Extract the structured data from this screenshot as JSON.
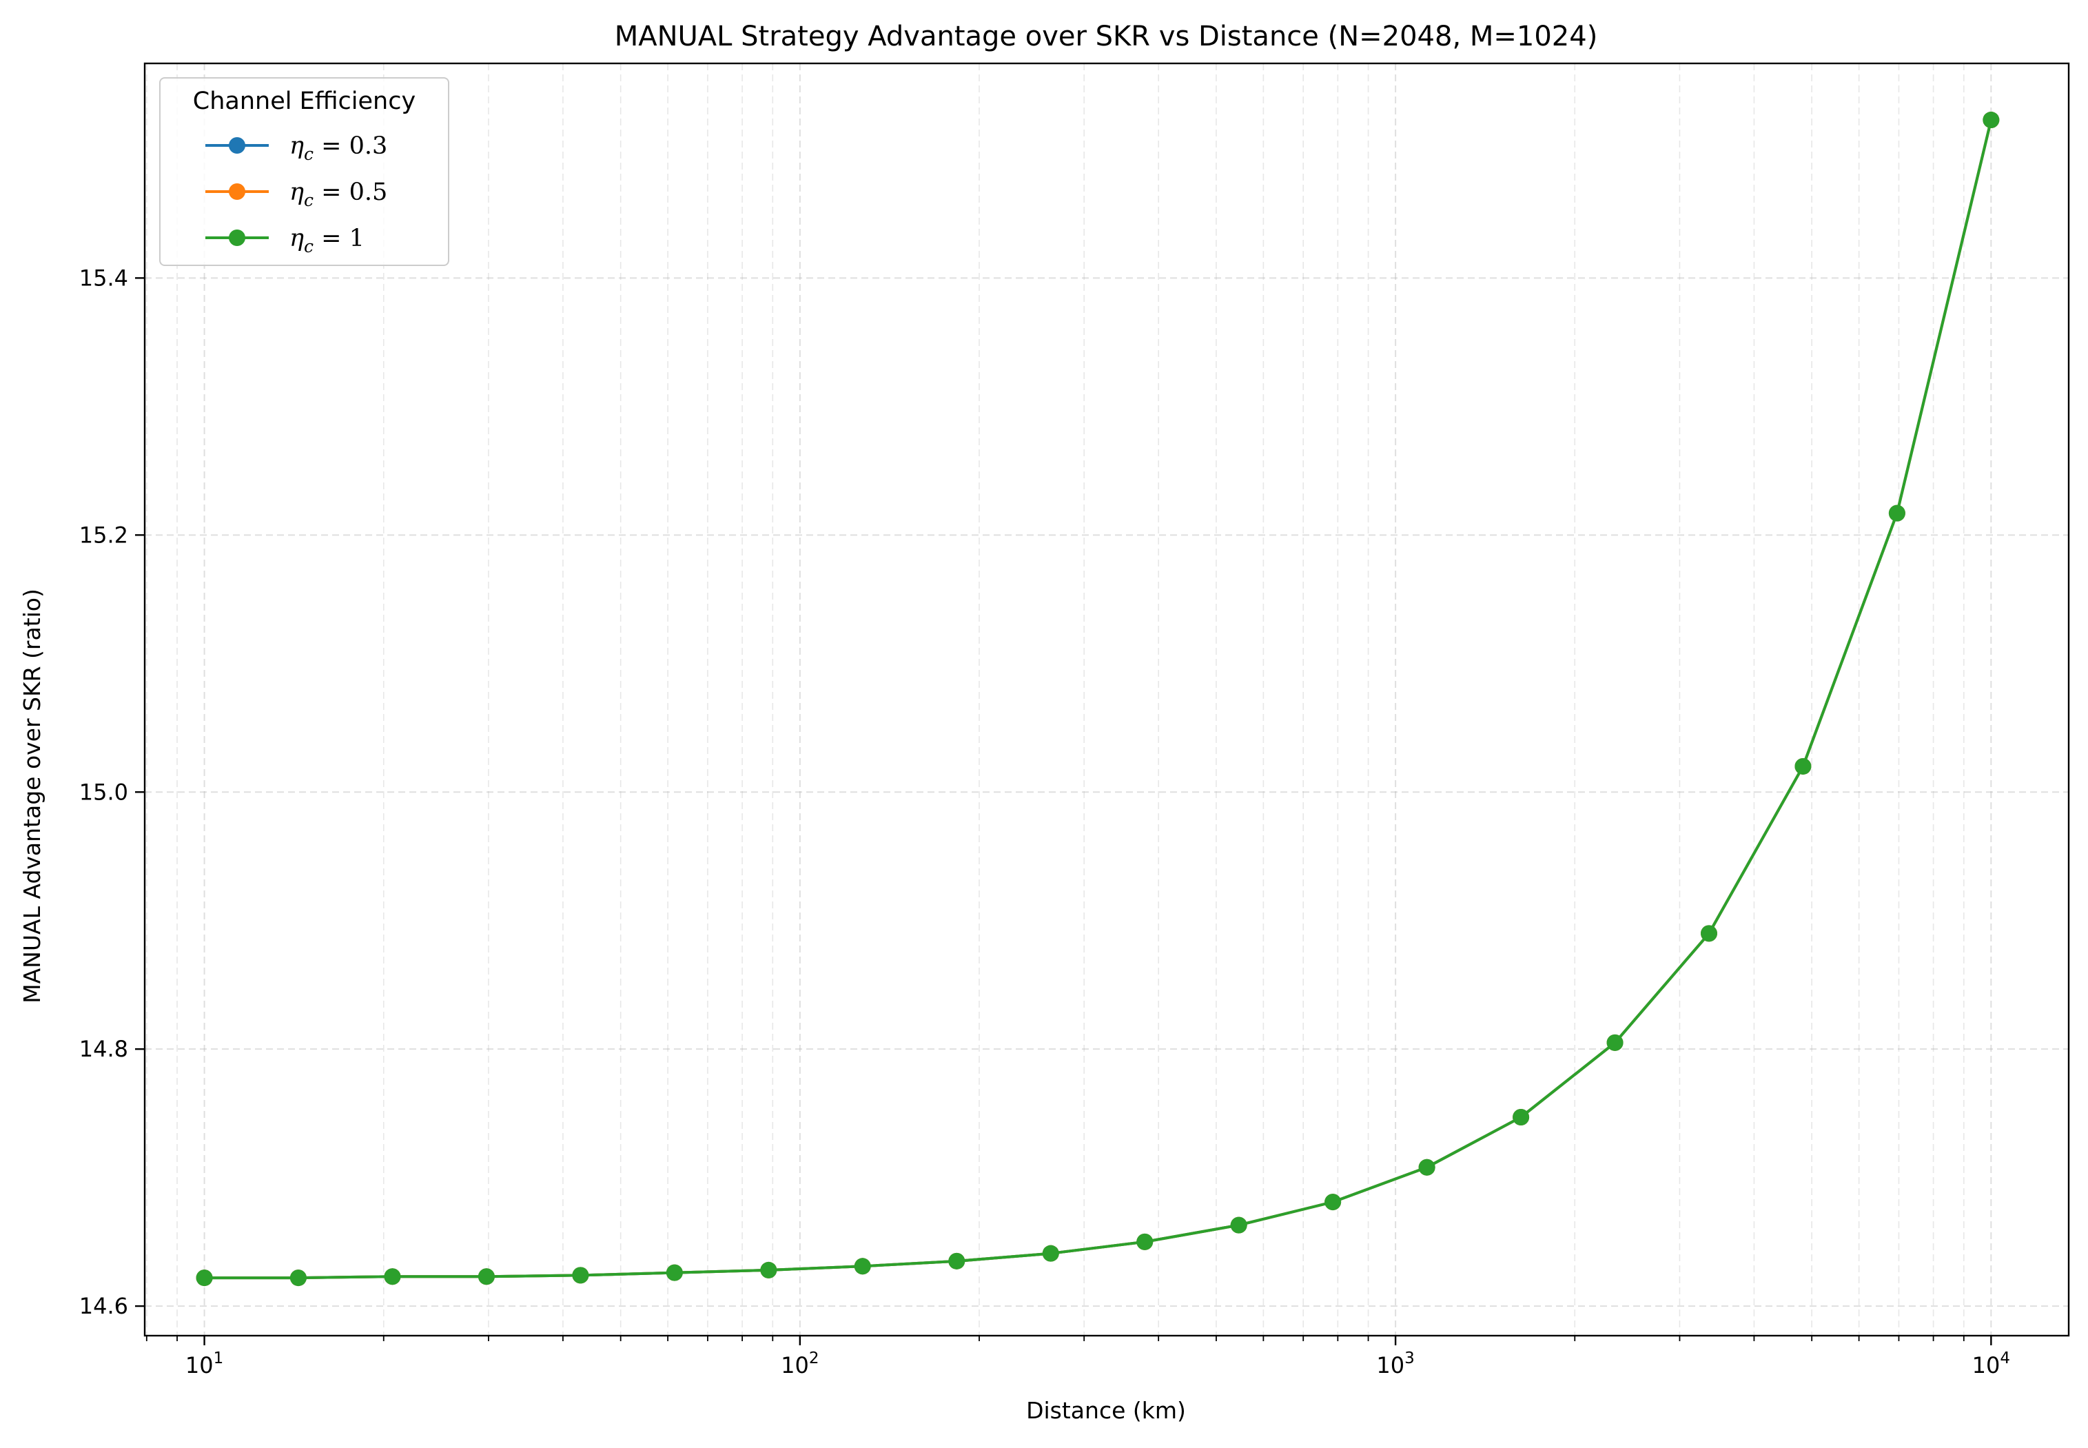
{
  "chart_data": {
    "type": "line",
    "title": "MANUAL Strategy Advantage over SKR vs Distance (N=2048, M=1024)",
    "xlabel": "Distance (km)",
    "ylabel": "MANUAL Advantage over SKR (ratio)",
    "xscale": "log",
    "xlim": [
      7.94,
      13500
    ],
    "ylim": [
      14.577,
      15.567
    ],
    "xticks": [
      {
        "value": 10,
        "base": "10",
        "exp": "1"
      },
      {
        "value": 100,
        "base": "10",
        "exp": "2"
      },
      {
        "value": 1000,
        "base": "10",
        "exp": "3"
      },
      {
        "value": 10000,
        "base": "10",
        "exp": "4"
      }
    ],
    "yticks": [
      14.6,
      14.8,
      15.0,
      15.2,
      15.4
    ],
    "ytick_labels": [
      "14.6",
      "14.8",
      "15.0",
      "15.2",
      "15.4"
    ],
    "grid": true,
    "legend": {
      "title": "Channel Efficiency",
      "placement": "top-left"
    },
    "x": [
      10,
      14.38,
      20.69,
      29.76,
      42.81,
      61.58,
      88.59,
      127.4,
      183.3,
      263.7,
      379.3,
      545.6,
      784.8,
      1129,
      1624,
      2336,
      3360,
      4833,
      6952,
      10000
    ],
    "series": [
      {
        "name": "η_c = 0.3",
        "label_base": "η",
        "label_sub": "c",
        "label_rest": " = 0.3",
        "color": "#1f77b4",
        "values": [
          14.622,
          14.622,
          14.623,
          14.623,
          14.624,
          14.626,
          14.628,
          14.631,
          14.635,
          14.641,
          14.65,
          14.663,
          14.681,
          14.708,
          14.747,
          14.805,
          14.89,
          15.02,
          15.217,
          15.523
        ]
      },
      {
        "name": "η_c = 0.5",
        "label_base": "η",
        "label_sub": "c",
        "label_rest": " = 0.5",
        "color": "#ff7f0e",
        "values": [
          14.622,
          14.622,
          14.623,
          14.623,
          14.624,
          14.626,
          14.628,
          14.631,
          14.635,
          14.641,
          14.65,
          14.663,
          14.681,
          14.708,
          14.747,
          14.805,
          14.89,
          15.02,
          15.217,
          15.523
        ]
      },
      {
        "name": "η_c = 1",
        "label_base": "η",
        "label_sub": "c",
        "label_rest": " = 1",
        "color": "#2ca02c",
        "values": [
          14.622,
          14.622,
          14.623,
          14.623,
          14.624,
          14.626,
          14.628,
          14.631,
          14.635,
          14.641,
          14.65,
          14.663,
          14.681,
          14.708,
          14.747,
          14.805,
          14.89,
          15.02,
          15.217,
          15.523
        ]
      }
    ]
  }
}
